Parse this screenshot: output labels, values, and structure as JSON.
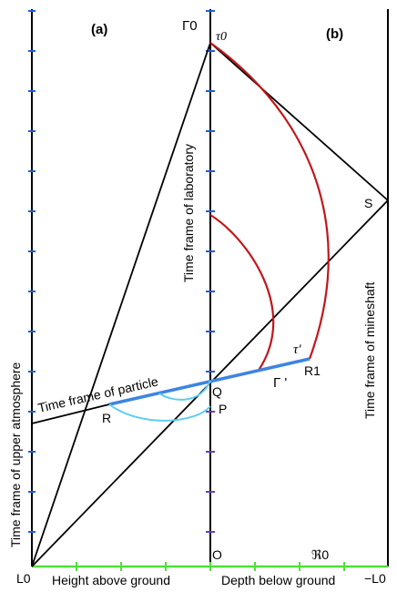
{
  "panel_labels": {
    "a": "(a)",
    "b": "(b)"
  },
  "points": {
    "gamma0": "Γ0",
    "tau0": "τ0",
    "s": "S",
    "tau_prime": "τ'",
    "r1": "R1",
    "gamma_prime": "Γ '",
    "q": "Q",
    "p": "P",
    "r": "R",
    "o": "O",
    "l0": "L0",
    "minus_l0": "−L0",
    "r0": "ℜ0"
  },
  "axis_labels": {
    "laboratory": "Time frame of laboratory",
    "mineshaft": "Time frame of mineshaft",
    "upper_atmosphere": "Time frame of upper atmosphere",
    "particle": "Time frame of particle",
    "height": "Height above ground",
    "depth": "Depth below ground"
  },
  "colors": {
    "axis": "#000000",
    "tick_blue": "#1f5fd6",
    "tick_purple": "#6a3fb5",
    "ground_green": "#4fe03a",
    "curve_red": "#c0171b",
    "particle_blue": "#3d85e0",
    "arc_cyan": "#5ccdf0"
  }
}
